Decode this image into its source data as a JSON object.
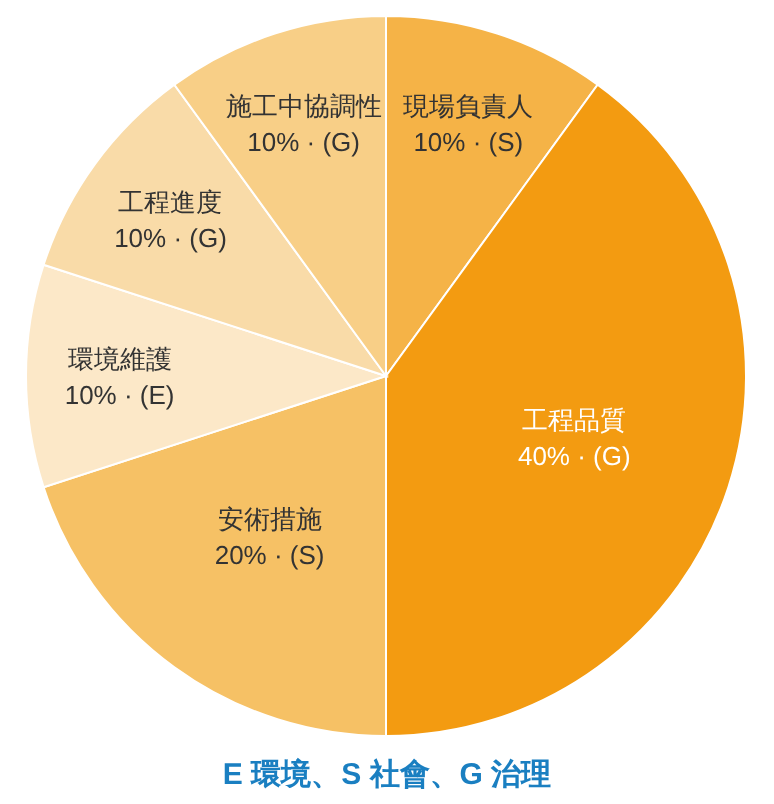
{
  "chart_data": {
    "type": "pie",
    "categories": [
      "現場負責人",
      "工程品質",
      "安術措施",
      "環境維護",
      "工程進度",
      "施工中協調性"
    ],
    "values": [
      10,
      40,
      20,
      10,
      10,
      10
    ],
    "colors": [
      "#f5b347",
      "#f39b11",
      "#f6c165",
      "#fce8c8",
      "#f9dba8",
      "#f8cf87"
    ],
    "value_labels": [
      "10% · (S)",
      "40% · (G)",
      "20% · (S)",
      "10% · (E)",
      "10% · (G)",
      "10% · (G)"
    ],
    "annotations": [
      "E 環境、S 社會、G 治理"
    ]
  }
}
